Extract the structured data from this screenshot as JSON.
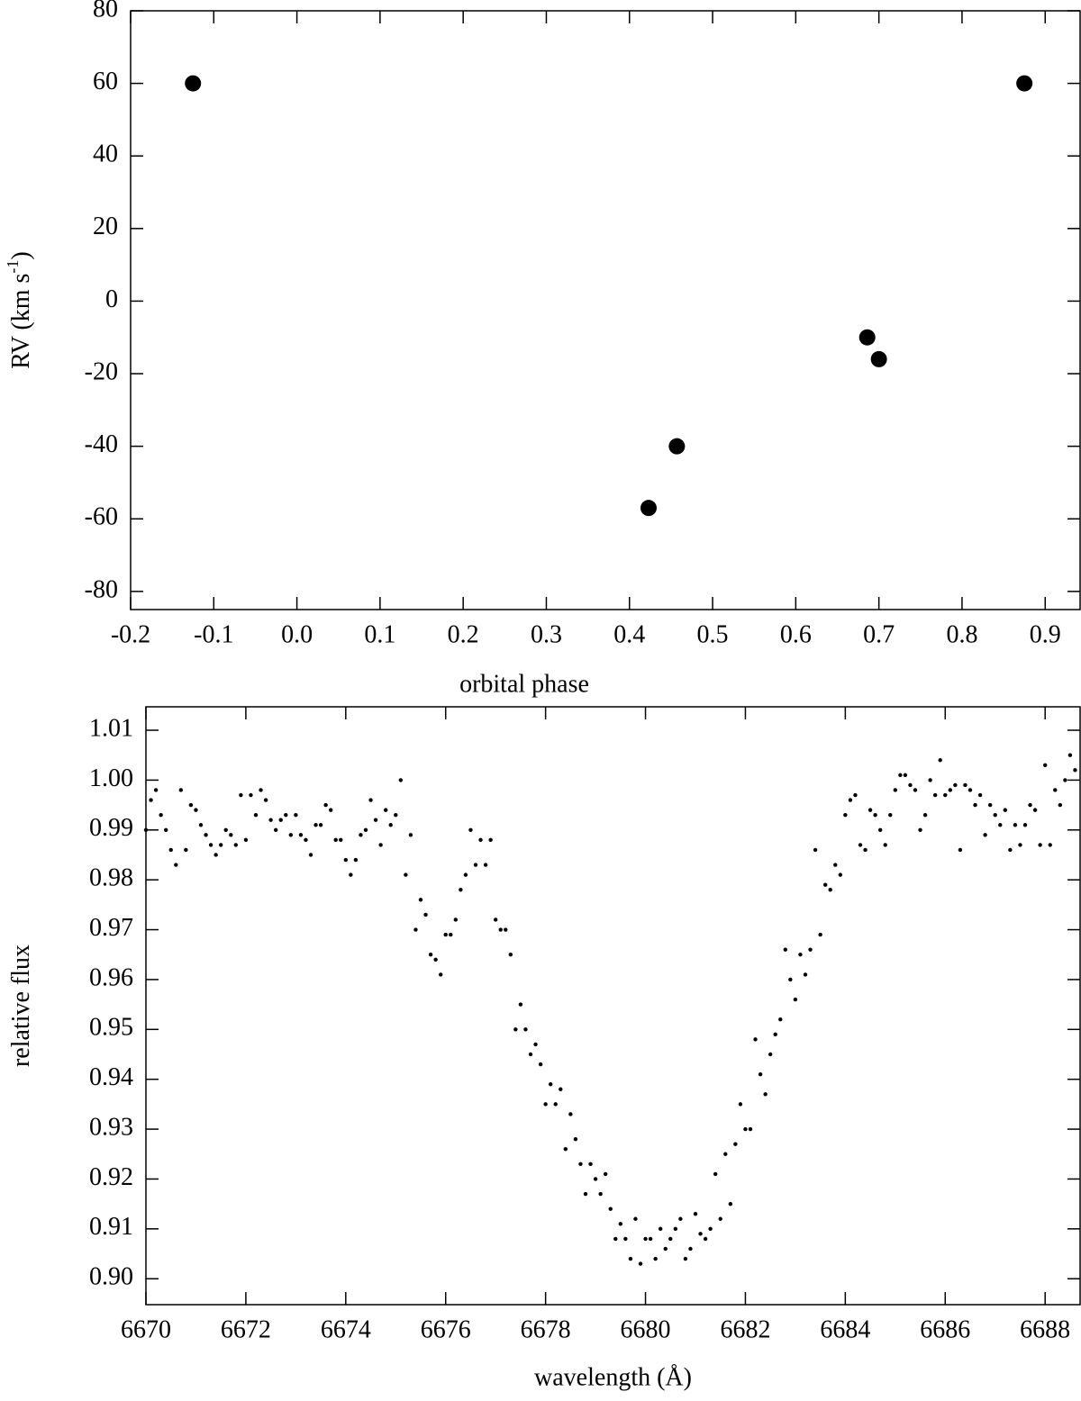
{
  "chart_data": [
    {
      "type": "scatter",
      "xlabel": "orbital phase",
      "ylabel_parts": [
        "RV (km s",
        "-1",
        ")"
      ],
      "x": [
        -0.125,
        0.423,
        0.457,
        0.686,
        0.7,
        0.875
      ],
      "series": [
        {
          "color": "#000000",
          "values": [
            60,
            -57,
            -40,
            -10,
            -16,
            60
          ]
        }
      ],
      "xlim": [
        -0.2,
        0.942
      ],
      "ylim": [
        -85,
        80
      ],
      "xticks": [
        -0.2,
        -0.1,
        {
          "value": 0,
          "label": "0.0"
        },
        0.1,
        0.2,
        0.3,
        0.4,
        0.5,
        0.6,
        0.7,
        0.8,
        0.9
      ],
      "yticks": [
        80,
        60,
        40,
        20,
        0,
        -20,
        -40,
        -60,
        -80
      ]
    },
    {
      "type": "scatter",
      "xlabel": "wavelength (Å)",
      "ylabel_parts": [
        "relative flux"
      ],
      "x": [
        6670.0,
        6670.1,
        6670.2,
        6670.3,
        6670.4,
        6670.5,
        6670.6,
        6670.7,
        6670.8,
        6670.9,
        6671.0,
        6671.1,
        6671.2,
        6671.3,
        6671.4,
        6671.5,
        6671.6,
        6671.7,
        6671.8,
        6671.9,
        6672.0,
        6672.1,
        6672.2,
        6672.3,
        6672.4,
        6672.5,
        6672.6,
        6672.7,
        6672.8,
        6672.9,
        6673.0,
        6673.1,
        6673.2,
        6673.3,
        6673.4,
        6673.5,
        6673.6,
        6673.7,
        6673.8,
        6673.9,
        6674.0,
        6674.1,
        6674.2,
        6674.3,
        6674.4,
        6674.5,
        6674.6,
        6674.7,
        6674.8,
        6674.9,
        6675.0,
        6675.1,
        6675.2,
        6675.3,
        6675.4,
        6675.5,
        6675.6,
        6675.7,
        6675.8,
        6675.9,
        6676.0,
        6676.1,
        6676.2,
        6676.3,
        6676.4,
        6676.5,
        6676.6,
        6676.7,
        6676.8,
        6676.9,
        6677.0,
        6677.1,
        6677.2,
        6677.3,
        6677.4,
        6677.5,
        6677.6,
        6677.7,
        6677.8,
        6677.9,
        6678.0,
        6678.1,
        6678.2,
        6678.3,
        6678.4,
        6678.5,
        6678.6,
        6678.7,
        6678.8,
        6678.9,
        6679.0,
        6679.1,
        6679.2,
        6679.3,
        6679.4,
        6679.5,
        6679.6,
        6679.7,
        6679.8,
        6679.9,
        6680.0,
        6680.1,
        6680.2,
        6680.3,
        6680.4,
        6680.5,
        6680.6,
        6680.7,
        6680.8,
        6680.9,
        6681.0,
        6681.1,
        6681.2,
        6681.3,
        6681.4,
        6681.5,
        6681.6,
        6681.7,
        6681.8,
        6681.9,
        6682.0,
        6682.1,
        6682.2,
        6682.3,
        6682.4,
        6682.5,
        6682.6,
        6682.7,
        6682.8,
        6682.9,
        6683.0,
        6683.1,
        6683.2,
        6683.3,
        6683.4,
        6683.5,
        6683.6,
        6683.7,
        6683.8,
        6683.9,
        6684.0,
        6684.1,
        6684.2,
        6684.3,
        6684.4,
        6684.5,
        6684.6,
        6684.7,
        6684.8,
        6684.9,
        6685.0,
        6685.1,
        6685.2,
        6685.3,
        6685.4,
        6685.5,
        6685.6,
        6685.7,
        6685.8,
        6685.9,
        6686.0,
        6686.1,
        6686.2,
        6686.3,
        6686.4,
        6686.5,
        6686.6,
        6686.7,
        6686.8,
        6686.9,
        6687.0,
        6687.1,
        6687.2,
        6687.3,
        6687.4,
        6687.5,
        6687.6,
        6687.7,
        6687.8,
        6687.9,
        6688.0,
        6688.1,
        6688.2,
        6688.3,
        6688.4,
        6688.5,
        6688.6
      ],
      "series": [
        {
          "color": "#000000",
          "values": [
            0.99,
            0.996,
            0.998,
            0.993,
            0.99,
            0.986,
            0.983,
            0.998,
            0.986,
            0.995,
            0.994,
            0.991,
            0.989,
            0.987,
            0.985,
            0.987,
            0.99,
            0.989,
            0.987,
            0.997,
            0.988,
            0.997,
            0.993,
            0.998,
            0.996,
            0.992,
            0.99,
            0.992,
            0.993,
            0.989,
            0.993,
            0.989,
            0.988,
            0.985,
            0.991,
            0.991,
            0.995,
            0.994,
            0.988,
            0.988,
            0.984,
            0.981,
            0.984,
            0.989,
            0.99,
            0.996,
            0.992,
            0.987,
            0.994,
            0.991,
            0.993,
            1.0,
            0.981,
            0.989,
            0.97,
            0.976,
            0.973,
            0.965,
            0.964,
            0.961,
            0.969,
            0.969,
            0.972,
            0.978,
            0.981,
            0.99,
            0.983,
            0.988,
            0.983,
            0.988,
            0.972,
            0.97,
            0.97,
            0.965,
            0.95,
            0.955,
            0.95,
            0.945,
            0.947,
            0.943,
            0.935,
            0.939,
            0.935,
            0.938,
            0.926,
            0.933,
            0.928,
            0.923,
            0.917,
            0.923,
            0.92,
            0.917,
            0.921,
            0.914,
            0.908,
            0.911,
            0.908,
            0.904,
            0.912,
            0.903,
            0.908,
            0.908,
            0.904,
            0.91,
            0.906,
            0.908,
            0.91,
            0.912,
            0.904,
            0.906,
            0.913,
            0.909,
            0.908,
            0.91,
            0.921,
            0.912,
            0.925,
            0.915,
            0.927,
            0.935,
            0.93,
            0.93,
            0.948,
            0.941,
            0.937,
            0.945,
            0.949,
            0.952,
            0.966,
            0.96,
            0.956,
            0.965,
            0.961,
            0.966,
            0.986,
            0.969,
            0.979,
            0.978,
            0.983,
            0.981,
            0.993,
            0.996,
            0.997,
            0.987,
            0.986,
            0.994,
            0.993,
            0.99,
            0.987,
            0.993,
            0.998,
            1.001,
            1.001,
            0.999,
            0.998,
            0.99,
            0.993,
            1.0,
            0.997,
            1.004,
            0.997,
            0.998,
            0.999,
            0.986,
            0.999,
            0.998,
            0.995,
            0.997,
            0.989,
            0.995,
            0.993,
            0.991,
            0.994,
            0.986,
            0.991,
            0.987,
            0.991,
            0.995,
            0.994,
            0.987,
            1.003,
            0.987,
            0.998,
            0.995,
            1.0,
            1.005,
            1.002
          ]
        }
      ],
      "xlim": [
        6670,
        6688.7
      ],
      "ylim": [
        0.8948,
        1.0147
      ],
      "xticks": [
        6670,
        6672,
        6674,
        6676,
        6678,
        6680,
        6682,
        6684,
        6686,
        6688
      ],
      "yticks": [
        1.01,
        {
          "value": 1.0,
          "label": "1.00"
        },
        0.99,
        0.98,
        0.97,
        0.96,
        0.95,
        0.94,
        0.93,
        0.92,
        0.91,
        {
          "value": 0.9,
          "label": "0.90"
        }
      ]
    }
  ]
}
